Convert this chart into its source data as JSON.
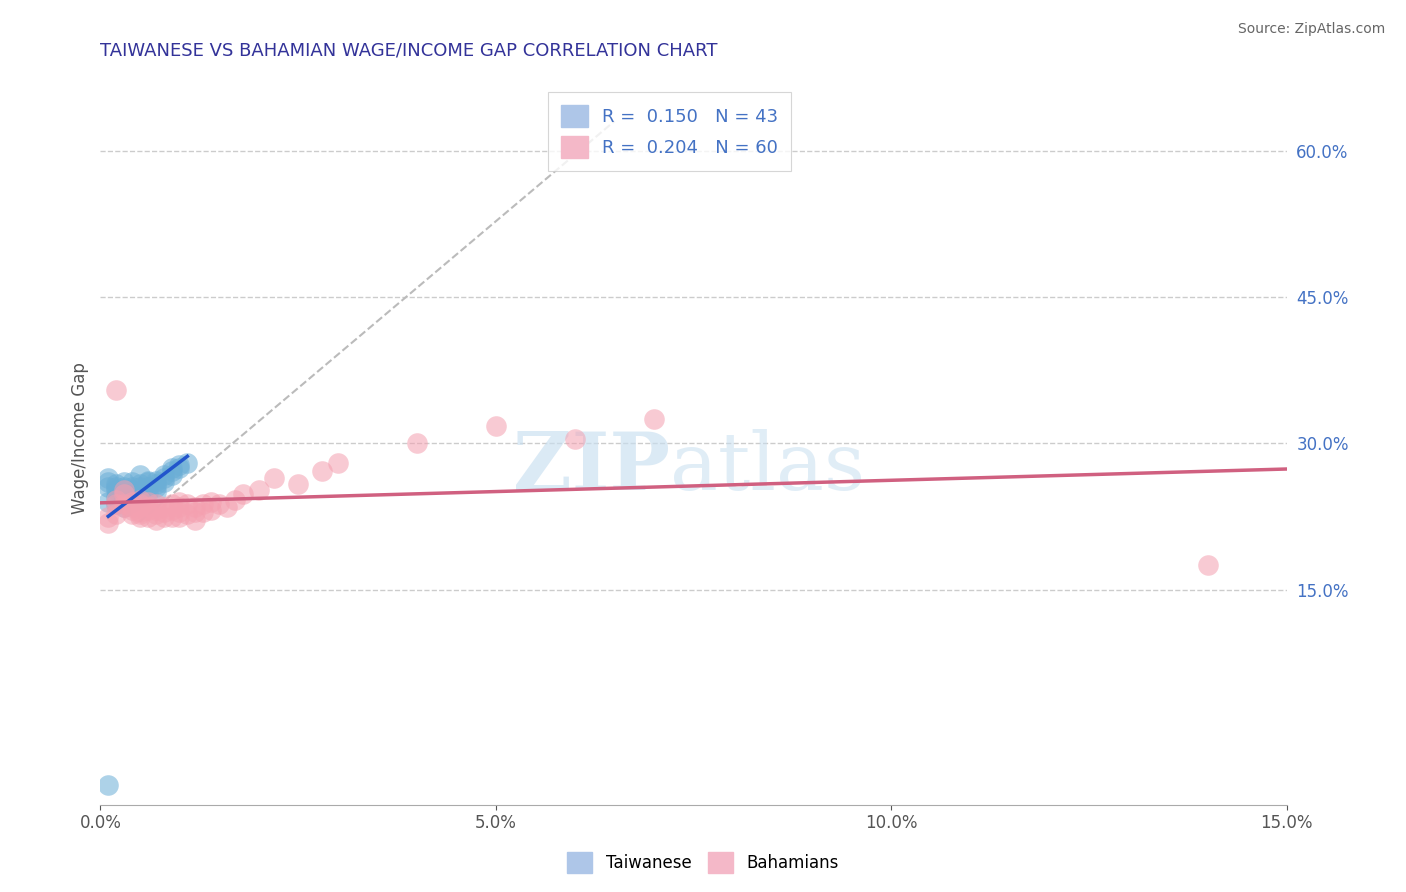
{
  "title": "TAIWANESE VS BAHAMIAN WAGE/INCOME GAP CORRELATION CHART",
  "source": "Source: ZipAtlas.com",
  "ylabel": "Wage/Income Gap",
  "xlim": [
    0.0,
    0.15
  ],
  "ylim": [
    -0.07,
    0.68
  ],
  "xticks": [
    0.0,
    0.05,
    0.1,
    0.15
  ],
  "xticklabels": [
    "0.0%",
    "5.0%",
    "10.0%",
    "15.0%"
  ],
  "right_yticks": [
    0.15,
    0.3,
    0.45,
    0.6
  ],
  "right_yticklabels": [
    "15.0%",
    "30.0%",
    "45.0%",
    "60.0%"
  ],
  "watermark_zip": "ZIP",
  "watermark_atlas": "atlas",
  "taiwanese_color": "#6baed6",
  "bahamian_color": "#f4a0b0",
  "tw_regression_color": "#2255cc",
  "bh_regression_color": "#d06080",
  "diagonal_color": "#bbbbbb",
  "taiwanese_R": 0.15,
  "taiwanese_N": 43,
  "bahamian_R": 0.204,
  "bahamian_N": 60,
  "title_fontsize": 13,
  "title_color": "#333399",
  "tw_x": [
    0.001,
    0.001,
    0.001,
    0.001,
    0.002,
    0.002,
    0.002,
    0.002,
    0.002,
    0.003,
    0.003,
    0.003,
    0.003,
    0.003,
    0.003,
    0.004,
    0.004,
    0.004,
    0.004,
    0.004,
    0.005,
    0.005,
    0.005,
    0.005,
    0.005,
    0.006,
    0.006,
    0.006,
    0.006,
    0.007,
    0.007,
    0.007,
    0.007,
    0.008,
    0.008,
    0.008,
    0.009,
    0.009,
    0.009,
    0.01,
    0.01,
    0.011,
    0.001
  ],
  "tw_y": [
    0.255,
    0.26,
    0.265,
    0.24,
    0.255,
    0.258,
    0.252,
    0.245,
    0.238,
    0.255,
    0.26,
    0.245,
    0.25,
    0.235,
    0.242,
    0.26,
    0.255,
    0.252,
    0.248,
    0.24,
    0.258,
    0.255,
    0.25,
    0.245,
    0.268,
    0.26,
    0.255,
    0.25,
    0.262,
    0.262,
    0.258,
    0.255,
    0.25,
    0.268,
    0.265,
    0.26,
    0.275,
    0.272,
    0.268,
    0.278,
    0.275,
    0.28,
    -0.05
  ],
  "bh_x": [
    0.001,
    0.001,
    0.002,
    0.002,
    0.002,
    0.003,
    0.003,
    0.003,
    0.003,
    0.004,
    0.004,
    0.004,
    0.004,
    0.005,
    0.005,
    0.005,
    0.005,
    0.005,
    0.006,
    0.006,
    0.006,
    0.006,
    0.007,
    0.007,
    0.007,
    0.007,
    0.008,
    0.008,
    0.008,
    0.009,
    0.009,
    0.009,
    0.01,
    0.01,
    0.01,
    0.01,
    0.011,
    0.011,
    0.012,
    0.012,
    0.012,
    0.013,
    0.013,
    0.014,
    0.014,
    0.015,
    0.016,
    0.017,
    0.018,
    0.02,
    0.022,
    0.025,
    0.028,
    0.03,
    0.04,
    0.05,
    0.06,
    0.07,
    0.14,
    0.002
  ],
  "bh_y": [
    0.225,
    0.218,
    0.238,
    0.242,
    0.228,
    0.235,
    0.248,
    0.238,
    0.252,
    0.232,
    0.24,
    0.228,
    0.235,
    0.23,
    0.238,
    0.225,
    0.242,
    0.228,
    0.232,
    0.24,
    0.225,
    0.235,
    0.228,
    0.238,
    0.222,
    0.232,
    0.23,
    0.235,
    0.225,
    0.232,
    0.238,
    0.225,
    0.23,
    0.235,
    0.225,
    0.24,
    0.228,
    0.238,
    0.23,
    0.235,
    0.222,
    0.23,
    0.238,
    0.232,
    0.24,
    0.238,
    0.235,
    0.242,
    0.248,
    0.252,
    0.265,
    0.258,
    0.272,
    0.28,
    0.3,
    0.318,
    0.305,
    0.325,
    0.175,
    0.355
  ]
}
